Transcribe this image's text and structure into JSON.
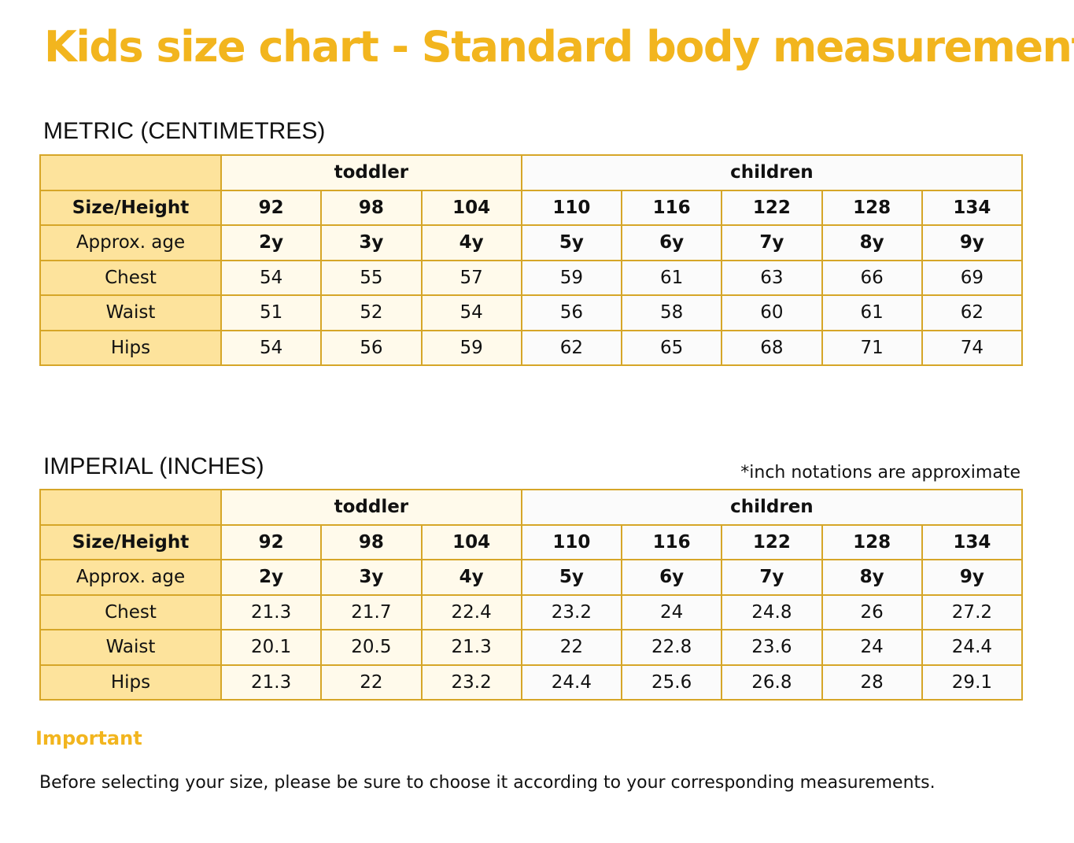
{
  "title": "Kids size chart - Standard body measurement",
  "metric": {
    "label": "METRIC (CENTIMETRES)",
    "groups": [
      "toddler",
      "children"
    ],
    "size_height_label": "Size/Height",
    "sizes": [
      "92",
      "98",
      "104",
      "110",
      "116",
      "122",
      "128",
      "134"
    ],
    "age_label": "Approx. age",
    "ages": [
      "2y",
      "3y",
      "4y",
      "5y",
      "6y",
      "7y",
      "8y",
      "9y"
    ],
    "rows": [
      {
        "label": "Chest",
        "values": [
          "54",
          "55",
          "57",
          "59",
          "61",
          "63",
          "66",
          "69"
        ]
      },
      {
        "label": "Waist",
        "values": [
          "51",
          "52",
          "54",
          "56",
          "58",
          "60",
          "61",
          "62"
        ]
      },
      {
        "label": "Hips",
        "values": [
          "54",
          "56",
          "59",
          "62",
          "65",
          "68",
          "71",
          "74"
        ]
      }
    ]
  },
  "imperial": {
    "label": "IMPERIAL (INCHES)",
    "note": "*inch notations are approximate",
    "groups": [
      "toddler",
      "children"
    ],
    "size_height_label": "Size/Height",
    "sizes": [
      "92",
      "98",
      "104",
      "110",
      "116",
      "122",
      "128",
      "134"
    ],
    "age_label": "Approx. age",
    "ages": [
      "2y",
      "3y",
      "4y",
      "5y",
      "6y",
      "7y",
      "8y",
      "9y"
    ],
    "rows": [
      {
        "label": "Chest",
        "values": [
          "21.3",
          "21.7",
          "22.4",
          "23.2",
          "24",
          "24.8",
          "26",
          "27.2"
        ]
      },
      {
        "label": "Waist",
        "values": [
          "20.1",
          "20.5",
          "21.3",
          "22",
          "22.8",
          "23.6",
          "24",
          "24.4"
        ]
      },
      {
        "label": "Hips",
        "values": [
          "21.3",
          "22",
          "23.2",
          "24.4",
          "25.6",
          "26.8",
          "28",
          "29.1"
        ]
      }
    ]
  },
  "important": {
    "heading": "Important",
    "text": "Before selecting your size, please be sure to choose it according to your corresponding measurements."
  },
  "colors": {
    "accent": "#f2b51e",
    "border": "#d6a628",
    "label_bg": "#fde39c",
    "toddler_bg": "#fffaeb",
    "children_bg": "#fbfbfb"
  }
}
